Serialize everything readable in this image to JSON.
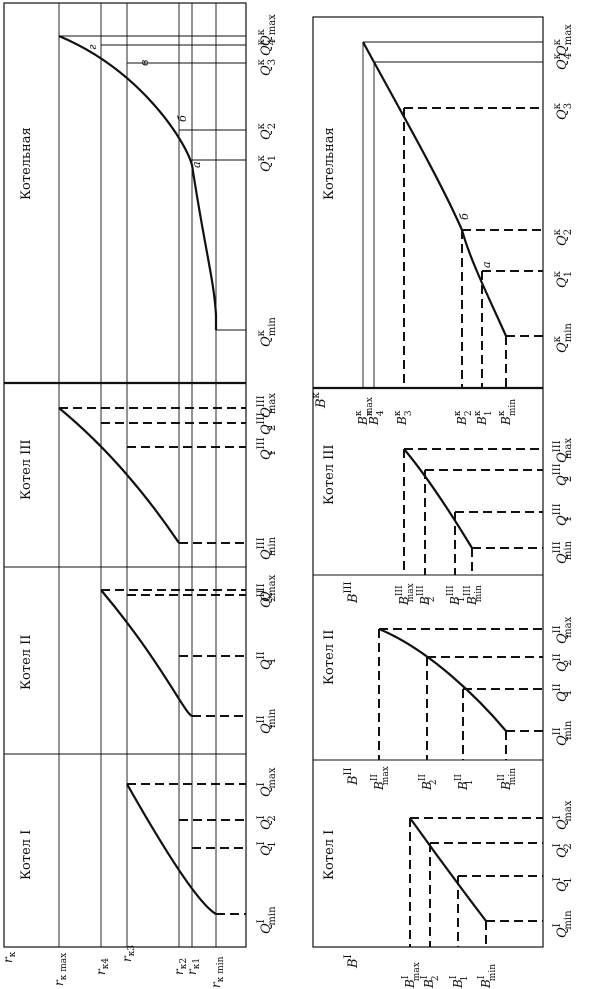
{
  "top": {
    "panels": [
      "Котел I",
      "Котел II",
      "Котел III",
      "Котельная"
    ],
    "axis_symbol": "r",
    "axis_symbol_sub": "к",
    "r_levels": [
      {
        "main": "r",
        "sub": "к max"
      },
      {
        "main": "r",
        "sub": "к4"
      },
      {
        "main": "r",
        "sub": "к3"
      },
      {
        "main": "r",
        "sub": "к2"
      },
      {
        "main": "r",
        "sub": "к1"
      },
      {
        "main": "r",
        "sub": "к min"
      }
    ],
    "q_labels": [
      [
        {
          "sub": "min",
          "sup": "I"
        },
        {
          "sub": "1",
          "sup": "I"
        },
        {
          "sub": "2",
          "sup": "I"
        },
        {
          "sub": "max",
          "sup": "I"
        }
      ],
      [
        {
          "sub": "min",
          "sup": "II"
        },
        {
          "sub": "1",
          "sup": "II"
        },
        {
          "sub": "2",
          "sup": "II"
        },
        {
          "sub": "max",
          "sup": "II"
        }
      ],
      [
        {
          "sub": "min",
          "sup": "III"
        },
        {
          "sub": "1",
          "sup": "III"
        },
        {
          "sub": "2",
          "sup": "III"
        },
        {
          "sub": "max",
          "sup": "III"
        }
      ],
      [
        {
          "sub": "min",
          "sup": "к"
        },
        {
          "sub": "1",
          "sup": "к"
        },
        {
          "sub": "2",
          "sup": "к"
        },
        {
          "sub": "3",
          "sup": "к"
        },
        {
          "sub": "4",
          "sup": "к"
        },
        {
          "sub": "max",
          "sup": "к"
        }
      ]
    ],
    "point_labels": [
      "а",
      "б",
      "в",
      "г"
    ]
  },
  "bottom": {
    "panels": [
      "Котел I",
      "Котел II",
      "Котел III",
      "Котельная"
    ],
    "q_symbol": "Q",
    "b_symbol": "B",
    "b_headers": [
      {
        "sup": "I"
      },
      {
        "sup": "II"
      },
      {
        "sup": "III"
      },
      {
        "sup": "к"
      }
    ],
    "b_labels": [
      [
        {
          "sub": "max",
          "sup": "I"
        },
        {
          "sub": "2",
          "sup": "I"
        },
        {
          "sub": "1",
          "sup": "I"
        },
        {
          "sub": "min",
          "sup": "I"
        }
      ],
      [
        {
          "sub": "max",
          "sup": "II"
        },
        {
          "sub": "2",
          "sup": "II"
        },
        {
          "sub": "1",
          "sup": "II"
        },
        {
          "sub": "min",
          "sup": "II"
        }
      ],
      [
        {
          "sub": "max",
          "sup": "III"
        },
        {
          "sub": "2",
          "sup": "III"
        },
        {
          "sub": "1",
          "sup": "III"
        },
        {
          "sub": "min",
          "sup": "III"
        }
      ],
      [
        {
          "sub": "max",
          "sup": "к"
        },
        {
          "sub": "4",
          "sup": "к"
        },
        {
          "sub": "3",
          "sup": "к"
        },
        {
          "sub": "2",
          "sup": "к"
        },
        {
          "sub": "1",
          "sup": "к"
        },
        {
          "sub": "min",
          "sup": "к"
        }
      ]
    ],
    "point_labels": [
      "а",
      "б"
    ]
  }
}
